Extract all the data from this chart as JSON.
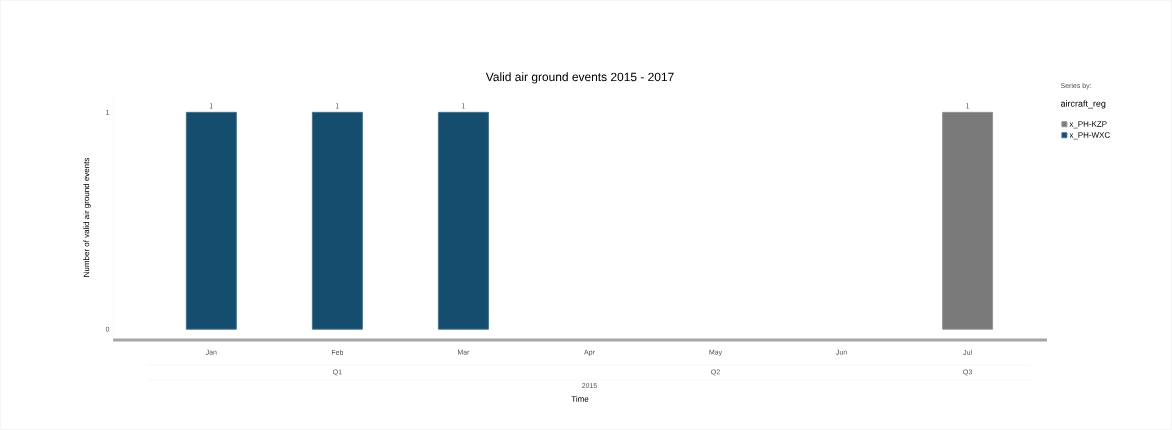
{
  "chart_data": {
    "type": "bar",
    "title": "Valid air ground events 2015 - 2017",
    "xlabel": "Time",
    "ylabel": "Number of valid air ground events",
    "legend_title": "aircraft_reg",
    "categories": [
      "Jan",
      "Feb",
      "Mar",
      "Apr",
      "May",
      "Jun",
      "Jul"
    ],
    "series": [
      {
        "name": "x_PH-KZP",
        "color": "#7a7a7a",
        "values": [
          null,
          null,
          null,
          null,
          null,
          null,
          1
        ]
      },
      {
        "name": "x_PH-WXC",
        "color": "#154d6e",
        "values": [
          1,
          1,
          1,
          null,
          null,
          null,
          null
        ]
      }
    ],
    "ylim": [
      -0.05,
      1.08
    ],
    "yticks": [
      0,
      1
    ],
    "data_labels": true,
    "legend": "top right",
    "annotations": [
      "Series by:",
      "Q1",
      "Q2",
      "Q3",
      "2015"
    ]
  }
}
